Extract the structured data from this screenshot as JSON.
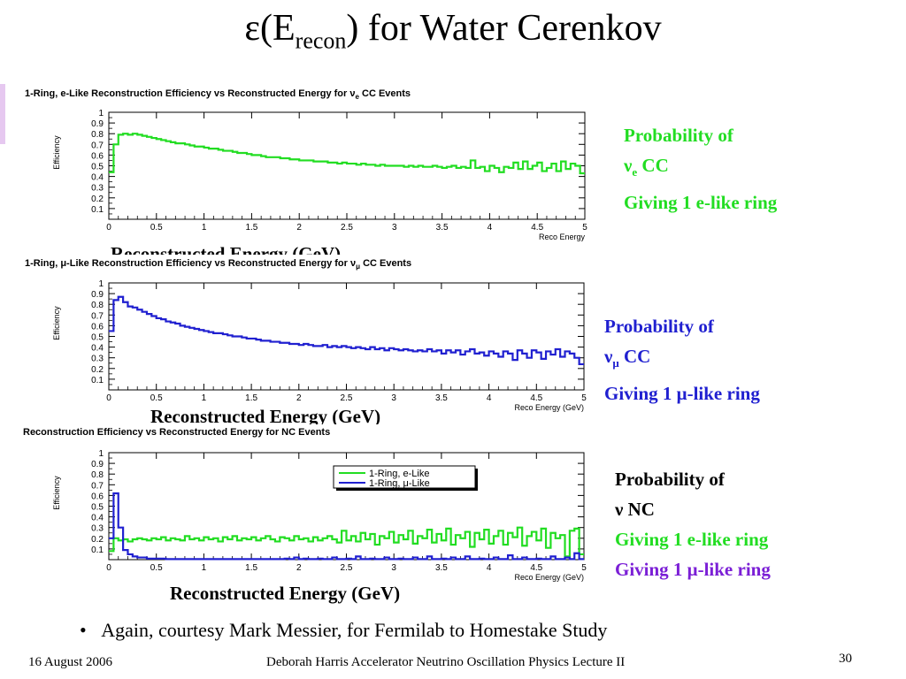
{
  "slide": {
    "title_prefix": "ε(E",
    "title_sub": "recon",
    "title_suffix": ") for Water Cerenkov",
    "bullet": "Again, courtesy Mark Messier, for Fermilab to Homestake Study",
    "footer_date": "16 August 2006",
    "footer_center": "Deborah Harris  Accelerator Neutrino Oscillation Physics Lecture II",
    "page_number": "30",
    "colors": {
      "e_like": "#22dd22",
      "mu_like": "#2020d0",
      "nc_label": "#7b1fd6"
    }
  },
  "annotations": {
    "nue": {
      "line1": "Probability of",
      "line2_symbol": "ν",
      "line2_sub": "e",
      "line2_rest": " CC",
      "line3": "Giving 1 e-like ring"
    },
    "numu": {
      "line1": "Probability of",
      "line2_symbol": "ν",
      "line2_sub": "μ",
      "line2_rest": " CC",
      "line3": "Giving 1 μ-like ring"
    },
    "nc": {
      "line1": "Probability of",
      "line2": "ν NC",
      "line3": "Giving 1 e-like ring",
      "line4": "Giving 1 μ-like ring"
    }
  },
  "captions": {
    "plot1": "Reconstructed Energy (GeV)",
    "plot2": "Reconstructed Energy (GeV)",
    "plot3": "Reconstructed Energy (GeV)"
  },
  "chart_data": [
    {
      "type": "line",
      "title_pre": "1-Ring, e-Like Reconstruction Efficiency vs Reconstructed Energy for ",
      "title_nu": "ν",
      "title_sub": "e",
      "title_post": " CC Events",
      "ylabel": "Efficiency",
      "xlabel": "Reco Energy",
      "xlim": [
        0,
        5
      ],
      "ylim": [
        0,
        1
      ],
      "xticks": [
        "0",
        "0.5",
        "1",
        "1.5",
        "2",
        "2.5",
        "3",
        "3.5",
        "4",
        "4.5",
        "5"
      ],
      "yticks": [
        "0.1",
        "0.2",
        "0.3",
        "0.4",
        "0.5",
        "0.6",
        "0.7",
        "0.8",
        "0.9",
        "1"
      ],
      "series": [
        {
          "color": "#22dd22",
          "values": [
            0.44,
            0.7,
            0.79,
            0.8,
            0.79,
            0.8,
            0.79,
            0.78,
            0.77,
            0.76,
            0.75,
            0.74,
            0.73,
            0.72,
            0.71,
            0.71,
            0.7,
            0.69,
            0.68,
            0.68,
            0.67,
            0.66,
            0.66,
            0.65,
            0.64,
            0.64,
            0.63,
            0.62,
            0.62,
            0.61,
            0.6,
            0.6,
            0.59,
            0.58,
            0.58,
            0.58,
            0.57,
            0.57,
            0.56,
            0.56,
            0.55,
            0.55,
            0.55,
            0.54,
            0.54,
            0.54,
            0.53,
            0.53,
            0.52,
            0.53,
            0.52,
            0.52,
            0.51,
            0.52,
            0.51,
            0.51,
            0.5,
            0.51,
            0.5,
            0.5,
            0.5,
            0.5,
            0.49,
            0.5,
            0.49,
            0.5,
            0.49,
            0.49,
            0.5,
            0.49,
            0.48,
            0.49,
            0.5,
            0.48,
            0.49,
            0.48,
            0.55,
            0.48,
            0.49,
            0.45,
            0.5,
            0.48,
            0.44,
            0.49,
            0.48,
            0.53,
            0.47,
            0.54,
            0.47,
            0.5,
            0.53,
            0.45,
            0.48,
            0.52,
            0.45,
            0.54,
            0.47,
            0.52,
            0.5,
            0.43
          ]
        }
      ]
    },
    {
      "type": "line",
      "title_pre": "1-Ring, μ-Like Reconstruction Efficiency vs Reconstructed Energy for ",
      "title_nu": "ν",
      "title_sub": "μ",
      "title_post": " CC Events",
      "ylabel": "Efficiency",
      "xlabel": "Reco Energy (GeV)",
      "xlim": [
        0,
        5
      ],
      "ylim": [
        0,
        1
      ],
      "xticks": [
        "0",
        "0.5",
        "1",
        "1.5",
        "2",
        "2.5",
        "3",
        "3.5",
        "4",
        "4.5",
        "5"
      ],
      "yticks": [
        "0.1",
        "0.2",
        "0.3",
        "0.4",
        "0.5",
        "0.6",
        "0.7",
        "0.8",
        "0.9",
        "1"
      ],
      "series": [
        {
          "color": "#2020d0",
          "values": [
            0.55,
            0.84,
            0.87,
            0.82,
            0.78,
            0.77,
            0.75,
            0.73,
            0.71,
            0.69,
            0.67,
            0.66,
            0.64,
            0.63,
            0.62,
            0.6,
            0.59,
            0.58,
            0.57,
            0.56,
            0.55,
            0.54,
            0.53,
            0.53,
            0.52,
            0.51,
            0.5,
            0.5,
            0.49,
            0.48,
            0.48,
            0.47,
            0.46,
            0.46,
            0.45,
            0.45,
            0.44,
            0.44,
            0.43,
            0.43,
            0.42,
            0.43,
            0.42,
            0.41,
            0.41,
            0.42,
            0.4,
            0.41,
            0.4,
            0.41,
            0.4,
            0.39,
            0.4,
            0.39,
            0.38,
            0.4,
            0.38,
            0.39,
            0.37,
            0.39,
            0.38,
            0.37,
            0.38,
            0.37,
            0.36,
            0.37,
            0.36,
            0.38,
            0.36,
            0.37,
            0.34,
            0.37,
            0.35,
            0.37,
            0.33,
            0.36,
            0.38,
            0.34,
            0.35,
            0.32,
            0.36,
            0.34,
            0.31,
            0.36,
            0.34,
            0.28,
            0.37,
            0.34,
            0.3,
            0.37,
            0.35,
            0.29,
            0.36,
            0.33,
            0.38,
            0.31,
            0.36,
            0.34,
            0.3,
            0.24
          ]
        }
      ]
    },
    {
      "type": "line",
      "title_pre": "Reconstruction Efficiency vs Reconstructed Energy for NC Events",
      "title_nu": "",
      "title_sub": "",
      "title_post": "",
      "ylabel": "Efficiency",
      "xlabel": "Reco Energy (GeV)",
      "xlim": [
        0,
        5
      ],
      "ylim": [
        0,
        1
      ],
      "xticks": [
        "0",
        "0.5",
        "1",
        "1.5",
        "2",
        "2.5",
        "3",
        "3.5",
        "4",
        "4.5",
        "5"
      ],
      "yticks": [
        "0.1",
        "0.2",
        "0.3",
        "0.4",
        "0.5",
        "0.6",
        "0.7",
        "0.8",
        "0.9",
        "1"
      ],
      "legend_position": "top-right",
      "series": [
        {
          "name": "1-Ring, e-Like",
          "color": "#22dd22",
          "values": [
            0.08,
            0.2,
            0.18,
            0.19,
            0.17,
            0.19,
            0.2,
            0.19,
            0.18,
            0.2,
            0.19,
            0.21,
            0.18,
            0.2,
            0.19,
            0.18,
            0.22,
            0.19,
            0.2,
            0.18,
            0.21,
            0.19,
            0.2,
            0.17,
            0.21,
            0.19,
            0.22,
            0.18,
            0.2,
            0.19,
            0.21,
            0.18,
            0.2,
            0.22,
            0.19,
            0.17,
            0.21,
            0.2,
            0.18,
            0.22,
            0.19,
            0.2,
            0.17,
            0.21,
            0.18,
            0.2,
            0.22,
            0.19,
            0.16,
            0.27,
            0.18,
            0.22,
            0.17,
            0.25,
            0.19,
            0.24,
            0.14,
            0.22,
            0.2,
            0.26,
            0.16,
            0.23,
            0.19,
            0.27,
            0.15,
            0.22,
            0.2,
            0.28,
            0.16,
            0.24,
            0.18,
            0.29,
            0.14,
            0.23,
            0.2,
            0.26,
            0.12,
            0.25,
            0.19,
            0.28,
            0.15,
            0.22,
            0.27,
            0.14,
            0.25,
            0.21,
            0.3,
            0.13,
            0.22,
            0.26,
            0.18,
            0.29,
            0.11,
            0.25,
            0.2,
            0.23,
            0.03,
            0.27,
            0.29,
            0.05
          ]
        },
        {
          "name": "1-Ring, μ-Like",
          "color": "#2020d0",
          "values": [
            0.2,
            0.62,
            0.3,
            0.09,
            0.05,
            0.03,
            0.02,
            0.02,
            0.01,
            0.01,
            0.01,
            0.01,
            0.005,
            0.005,
            0.005,
            0.005,
            0.005,
            0.005,
            0.005,
            0.005,
            0.005,
            0.005,
            0.005,
            0.005,
            0.005,
            0.005,
            0.005,
            0.005,
            0.005,
            0.005,
            0.005,
            0.005,
            0.005,
            0.005,
            0.005,
            0.005,
            0.005,
            0.01,
            0.005,
            0.02,
            0.005,
            0.01,
            0.005,
            0.005,
            0.01,
            0.005,
            0.005,
            0.02,
            0.005,
            0.005,
            0.01,
            0.005,
            0.03,
            0.005,
            0.005,
            0.01,
            0.005,
            0.005,
            0.02,
            0.005,
            0.005,
            0.01,
            0.005,
            0.005,
            0.02,
            0.005,
            0.005,
            0.03,
            0.005,
            0.005,
            0.01,
            0.005,
            0.02,
            0.005,
            0.005,
            0.03,
            0.005,
            0.005,
            0.01,
            0.005,
            0.005,
            0.02,
            0.005,
            0.005,
            0.04,
            0.005,
            0.005,
            0.02,
            0.005,
            0.005,
            0.01,
            0.005,
            0.005,
            0.03,
            0.005,
            0.005,
            0.02,
            0.005,
            0.06,
            0.005
          ]
        }
      ]
    }
  ]
}
